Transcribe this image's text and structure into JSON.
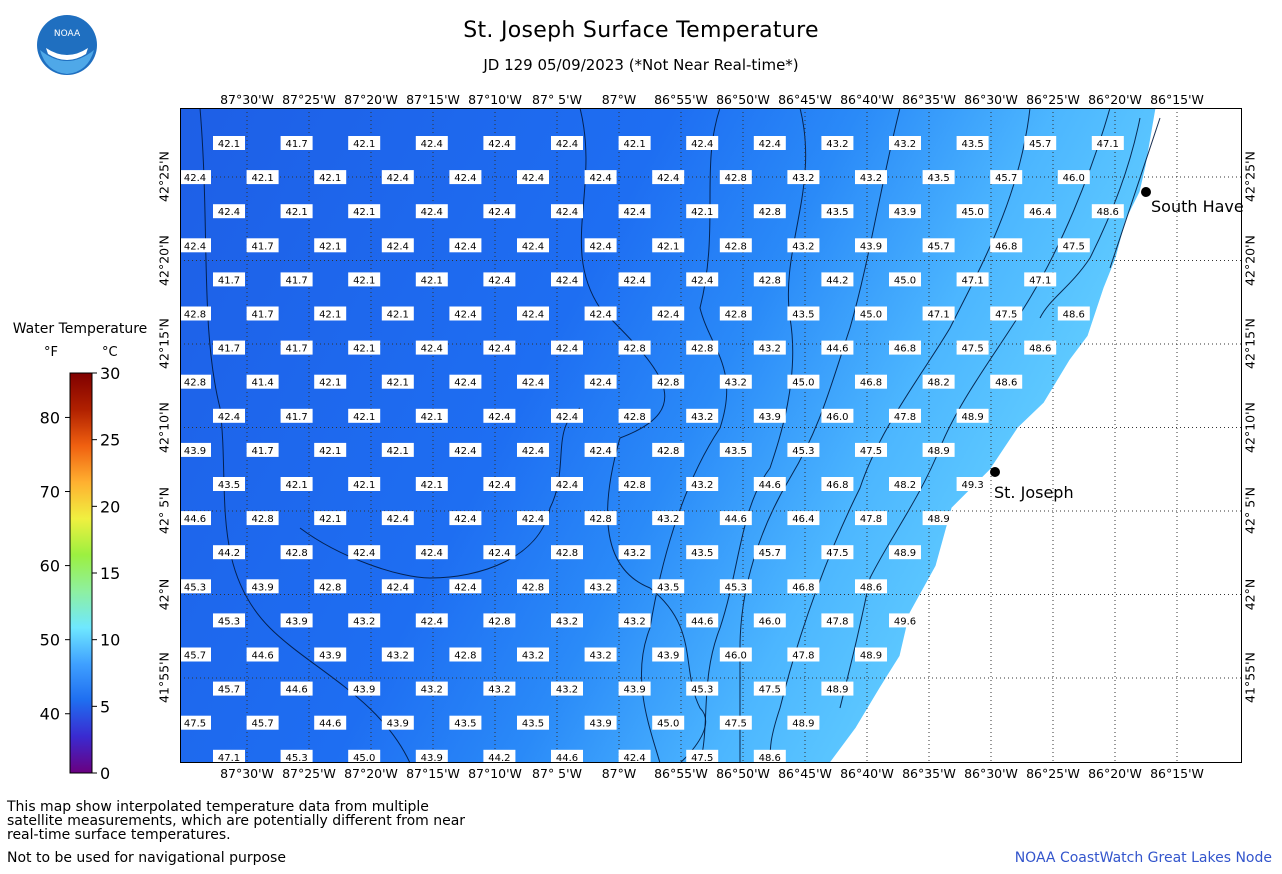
{
  "header": {
    "title": "St. Joseph Surface Temperature",
    "subtitle": "JD 129 05/09/2023 (*Not Near Real-time*)",
    "logo_text": "NOAA"
  },
  "legend": {
    "title": "Water Temperature",
    "unit_f": "°F",
    "unit_c": "°C",
    "f_ticks": [
      "80",
      "70",
      "60",
      "50",
      "40"
    ],
    "c_ticks": [
      "30",
      "25",
      "20",
      "15",
      "10",
      "5",
      "0"
    ],
    "colors": [
      "#6a0080",
      "#3a2ad0",
      "#1f6ef0",
      "#3fa0ff",
      "#6fe8ff",
      "#8ef0a0",
      "#9cf040",
      "#f0f040",
      "#ffb030",
      "#f06010",
      "#b02000",
      "#800000"
    ]
  },
  "axes": {
    "lon_labels": [
      "87°30'W",
      "87°25'W",
      "87°20'W",
      "87°15'W",
      "87°10'W",
      "87° 5'W",
      "87°W",
      "86°55'W",
      "86°50'W",
      "86°45'W",
      "86°40'W",
      "86°35'W",
      "86°30'W",
      "86°25'W",
      "86°20'W",
      "86°15'W"
    ],
    "lat_labels": [
      "42°25'N",
      "42°20'N",
      "42°15'N",
      "42°10'N",
      "42° 5'N",
      "42°N",
      "41°55'N"
    ]
  },
  "cities": [
    {
      "name": "South Have",
      "key": "south-haven"
    },
    {
      "name": "St. Joseph",
      "key": "st-joseph"
    }
  ],
  "grid": {
    "rows": [
      [
        "42.1",
        "41.7",
        "42.1",
        "42.4",
        "42.4",
        "42.4",
        "42.1",
        "42.4",
        "42.4",
        "43.2",
        "43.2",
        "43.5",
        "45.7",
        "47.1"
      ],
      [
        "42.4",
        "42.1",
        "42.1",
        "42.4",
        "42.4",
        "42.4",
        "42.4",
        "42.4",
        "42.8",
        "43.2",
        "43.2",
        "43.5",
        "45.7",
        "46.0"
      ],
      [
        "42.4",
        "42.1",
        "42.1",
        "42.4",
        "42.4",
        "42.4",
        "42.4",
        "42.1",
        "42.8",
        "43.5",
        "43.9",
        "45.0",
        "46.4",
        "48.6"
      ],
      [
        "42.4",
        "41.7",
        "42.1",
        "42.4",
        "42.4",
        "42.4",
        "42.4",
        "42.1",
        "42.8",
        "43.2",
        "43.9",
        "45.7",
        "46.8",
        "47.5"
      ],
      [
        "41.7",
        "41.7",
        "42.1",
        "42.1",
        "42.4",
        "42.4",
        "42.4",
        "42.4",
        "42.8",
        "44.2",
        "45.0",
        "47.1",
        "47.1"
      ],
      [
        "42.8",
        "41.7",
        "42.1",
        "42.1",
        "42.4",
        "42.4",
        "42.4",
        "42.4",
        "42.8",
        "43.5",
        "45.0",
        "47.1",
        "47.5",
        "48.6"
      ],
      [
        "41.7",
        "41.7",
        "42.1",
        "42.4",
        "42.4",
        "42.4",
        "42.8",
        "42.8",
        "43.2",
        "44.6",
        "46.8",
        "47.5",
        "48.6"
      ],
      [
        "42.8",
        "41.4",
        "42.1",
        "42.1",
        "42.4",
        "42.4",
        "42.4",
        "42.8",
        "43.2",
        "45.0",
        "46.8",
        "48.2",
        "48.6"
      ],
      [
        "42.4",
        "41.7",
        "42.1",
        "42.1",
        "42.4",
        "42.4",
        "42.8",
        "43.2",
        "43.9",
        "46.0",
        "47.8",
        "48.9"
      ],
      [
        "43.9",
        "41.7",
        "42.1",
        "42.1",
        "42.4",
        "42.4",
        "42.4",
        "42.8",
        "43.5",
        "45.3",
        "47.5",
        "48.9"
      ],
      [
        "43.5",
        "42.1",
        "42.1",
        "42.1",
        "42.4",
        "42.4",
        "42.8",
        "43.2",
        "44.6",
        "46.8",
        "48.2",
        "49.3"
      ],
      [
        "44.6",
        "42.8",
        "42.1",
        "42.4",
        "42.4",
        "42.4",
        "42.8",
        "43.2",
        "44.6",
        "46.4",
        "47.8",
        "48.9"
      ],
      [
        "44.2",
        "42.8",
        "42.4",
        "42.4",
        "42.4",
        "42.8",
        "43.2",
        "43.5",
        "45.7",
        "47.5",
        "48.9"
      ],
      [
        "45.3",
        "43.9",
        "42.8",
        "42.4",
        "42.4",
        "42.8",
        "43.2",
        "43.5",
        "45.3",
        "46.8",
        "48.6"
      ],
      [
        "45.3",
        "43.9",
        "43.2",
        "42.4",
        "42.8",
        "43.2",
        "43.2",
        "44.6",
        "46.0",
        "47.8",
        "49.6"
      ],
      [
        "45.7",
        "44.6",
        "43.9",
        "43.2",
        "42.8",
        "43.2",
        "43.2",
        "43.9",
        "46.0",
        "47.8",
        "48.9"
      ],
      [
        "45.7",
        "44.6",
        "43.9",
        "43.2",
        "43.2",
        "43.2",
        "43.9",
        "45.3",
        "47.5",
        "48.9"
      ],
      [
        "47.5",
        "45.7",
        "44.6",
        "43.9",
        "43.5",
        "43.5",
        "43.9",
        "45.0",
        "47.5",
        "48.9"
      ],
      [
        "47.1",
        "45.3",
        "45.0",
        "43.9",
        "44.2",
        "44.6",
        "42.4",
        "47.5",
        "48.6"
      ]
    ]
  },
  "footer": {
    "note": "This map show interpolated temperature data from multiple satellite measurements, which are potentially different from near real-time surface temperatures.",
    "nav_warning": "Not to be used for navigational purpose",
    "credit": "NOAA CoastWatch Great Lakes Node"
  }
}
